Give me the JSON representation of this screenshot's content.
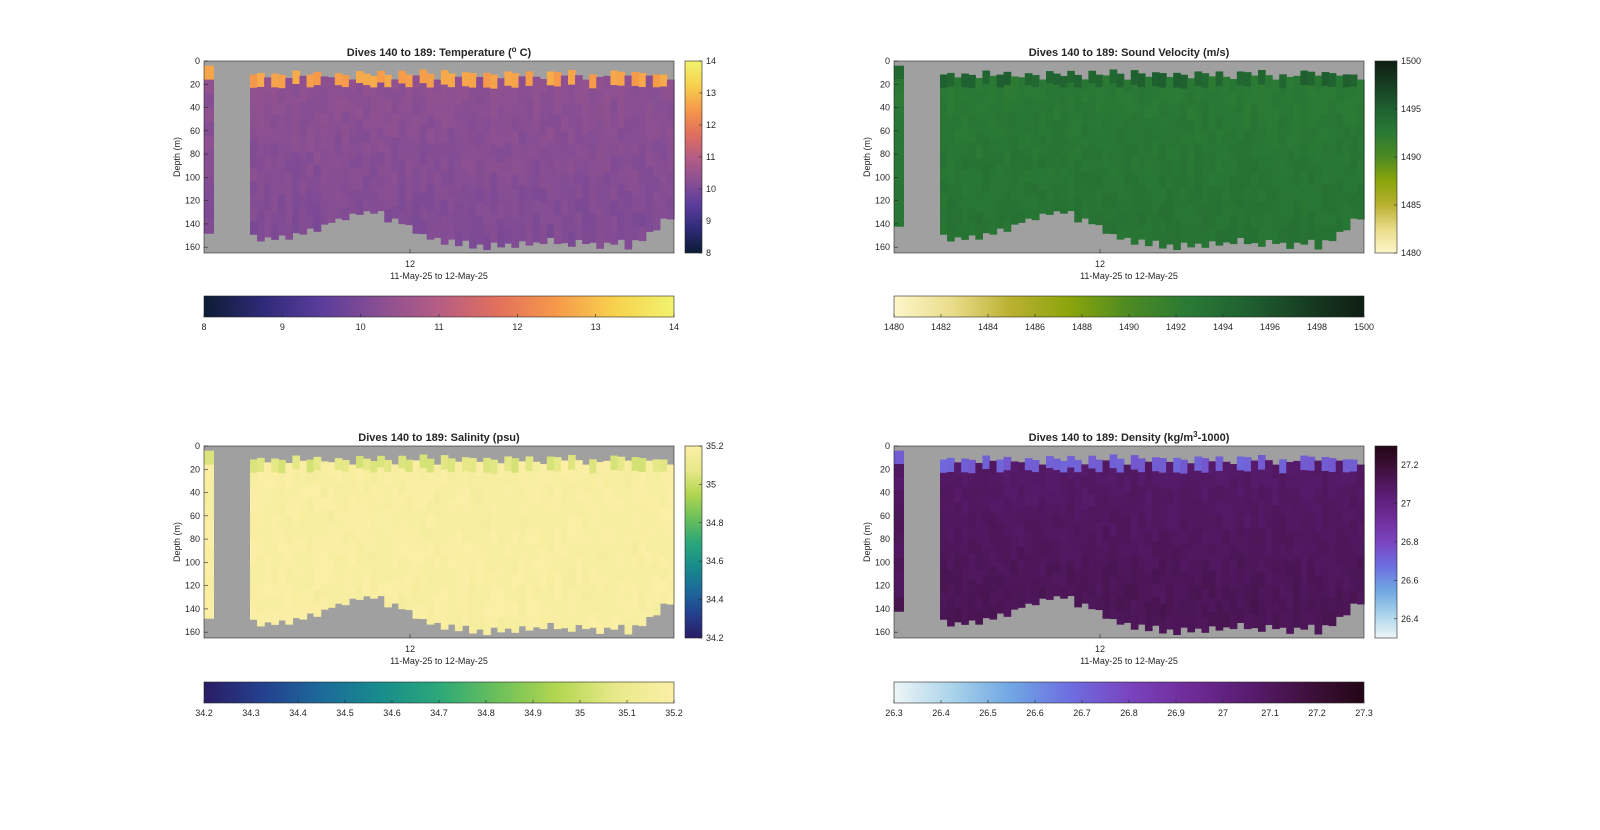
{
  "figure": {
    "background": "#ffffff",
    "no_data_color": "#a0a0a0"
  },
  "chart_data": [
    {
      "type": "heatmap",
      "title": "Dives 140 to 189: Temperature (°C)",
      "title_parts": [
        "Dives 140 to 189: Temperature (",
        "o",
        " C)"
      ],
      "ylabel": "Depth (m)",
      "xlabel": "11-May-25 to 12-May-25",
      "x_tick_labels": [
        "12"
      ],
      "ylim": [
        0,
        160
      ],
      "y_ticks": [
        0,
        20,
        40,
        60,
        80,
        100,
        120,
        140,
        160
      ],
      "y_reversed": true,
      "colorbar_right": {
        "range": [
          8,
          14
        ],
        "ticks": [
          8,
          9,
          10,
          11,
          12,
          13,
          14
        ]
      },
      "colorbar_bottom": {
        "range": [
          8,
          14
        ],
        "ticks": [
          8,
          9,
          10,
          11,
          12,
          13,
          14
        ]
      },
      "colormap": [
        "#0c1c33",
        "#2f2a78",
        "#5a3d9c",
        "#8a4f92",
        "#b65d84",
        "#e2705c",
        "#f69a4a",
        "#f7d24d",
        "#f1f36e"
      ],
      "surface_value": 12.6,
      "deep_value": 10.3,
      "surface_depth_m": 14,
      "deepest_value": 10.1
    },
    {
      "type": "heatmap",
      "title": "Dives 140 to 189: Sound Velocity (m/s)",
      "ylabel": "Depth (m)",
      "xlabel": "11-May-25 to 12-May-25",
      "x_tick_labels": [
        "12"
      ],
      "ylim": [
        0,
        160
      ],
      "y_ticks": [
        0,
        20,
        40,
        60,
        80,
        100,
        120,
        140,
        160
      ],
      "y_reversed": true,
      "colorbar_right": {
        "range": [
          1480,
          1500
        ],
        "ticks": [
          1480,
          1485,
          1490,
          1495,
          1500
        ]
      },
      "colorbar_bottom": {
        "range": [
          1480,
          1500
        ],
        "ticks": [
          1480,
          1482,
          1484,
          1486,
          1488,
          1490,
          1492,
          1494,
          1496,
          1498,
          1500
        ]
      },
      "colormap": [
        "#fdf6c9",
        "#e9dc8a",
        "#b9b030",
        "#8aa50b",
        "#4c8a22",
        "#2a7a35",
        "#1f6130",
        "#173e22",
        "#0f1d13"
      ],
      "surface_value": 1494.8,
      "deep_value": 1492.6,
      "surface_depth_m": 14,
      "deepest_value": 1493.2
    },
    {
      "type": "heatmap",
      "title": "Dives 140 to 189: Salinity (psu)",
      "ylabel": "Depth (m)",
      "xlabel": "11-May-25 to 12-May-25",
      "x_tick_labels": [
        "12"
      ],
      "ylim": [
        0,
        160
      ],
      "y_ticks": [
        0,
        20,
        40,
        60,
        80,
        100,
        120,
        140,
        160
      ],
      "y_reversed": true,
      "colorbar_right": {
        "range": [
          34.2,
          35.2
        ],
        "ticks": [
          34.2,
          34.4,
          34.6,
          34.8,
          35,
          35.2
        ]
      },
      "colorbar_bottom": {
        "range": [
          34.2,
          35.2
        ],
        "ticks": [
          34.2,
          34.3,
          34.4,
          34.5,
          34.6,
          34.7,
          34.8,
          34.9,
          35,
          35.1,
          35.2
        ]
      },
      "colormap": [
        "#2a1c64",
        "#24408e",
        "#1c6a9a",
        "#178c8c",
        "#2ca879",
        "#6bc05a",
        "#b2d64f",
        "#e8e98a",
        "#fbefa6"
      ],
      "surface_value": 35.05,
      "deep_value": 35.18,
      "surface_depth_m": 14,
      "deepest_value": 35.18
    },
    {
      "type": "heatmap",
      "title": "Dives 140 to 189: Density (kg/m³-1000)",
      "title_parts": [
        "Dives 140 to 189: Density (kg/m",
        "3",
        "-1000)"
      ],
      "ylabel": "Depth (m)",
      "xlabel": "11-May-25 to 12-May-25",
      "x_tick_labels": [
        "12"
      ],
      "ylim": [
        0,
        160
      ],
      "y_ticks": [
        0,
        20,
        40,
        60,
        80,
        100,
        120,
        140,
        160
      ],
      "y_reversed": true,
      "colorbar_right": {
        "range": [
          26.3,
          27.3
        ],
        "ticks": [
          26.4,
          26.6,
          26.8,
          27,
          27.2
        ]
      },
      "colorbar_bottom": {
        "range": [
          26.3,
          27.3
        ],
        "ticks": [
          26.3,
          26.4,
          26.5,
          26.6,
          26.7,
          26.8,
          26.9,
          27,
          27.1,
          27.2,
          27.3
        ]
      },
      "colormap": [
        "#eef6f7",
        "#a9d3ea",
        "#6fa6e3",
        "#6d6ee0",
        "#7a44bf",
        "#6f2c99",
        "#5a1c72",
        "#40113f",
        "#230614"
      ],
      "surface_value": 26.72,
      "deep_value": 27.08,
      "surface_depth_m": 14,
      "deepest_value": 27.12
    }
  ]
}
